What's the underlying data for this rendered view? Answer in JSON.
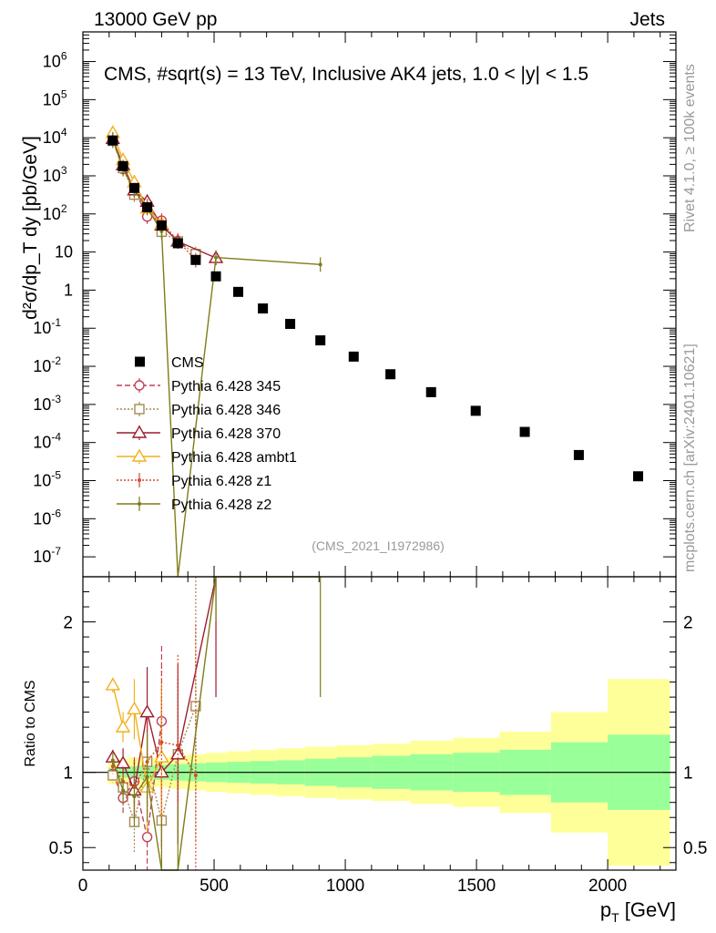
{
  "header": {
    "left": "13000 GeV pp",
    "right": "Jets",
    "plot_title": "CMS, #sqrt(s) = 13 TeV, Inclusive AK4 jets, 1.0 < |y| < 1.5",
    "analysis_id": "(CMS_2021_I1972986)",
    "side_top": "Rivet 4.1.0, ≥ 100k events",
    "side_bottom": "mcplots.cern.ch [arXiv:2401.10621]"
  },
  "colors": {
    "data": "#000000",
    "p345": "#c0405a",
    "p346": "#a68a50",
    "p370": "#9c1c30",
    "ambt1": "#f2b01e",
    "z1": "#d84a2c",
    "z2": "#7e7c18",
    "band_inner": "#99ff99",
    "band_outer": "#ffff99"
  },
  "chart_data": {
    "type": "scatter",
    "xlabel": "p_T [GeV]",
    "ylabel": "d²σ/dp_T dy [pb/GeV]",
    "ratio_ylabel": "Ratio to CMS",
    "xlim": [
      0,
      2260
    ],
    "ylim": [
      3e-08,
      6000000.0
    ],
    "ratio_ylim": [
      0.35,
      2.3
    ],
    "x_ticks": [
      {
        "value": 0,
        "label": "0"
      },
      {
        "value": 500,
        "label": "500"
      },
      {
        "value": 1000,
        "label": "1000"
      },
      {
        "value": 1500,
        "label": "1500"
      },
      {
        "value": 2000,
        "label": "2000"
      }
    ],
    "y_ticks": [
      {
        "exp": 6,
        "base": "10",
        "sup": "6"
      },
      {
        "exp": 5,
        "base": "10",
        "sup": "5"
      },
      {
        "exp": 4,
        "base": "10",
        "sup": "4"
      },
      {
        "exp": 3,
        "base": "10",
        "sup": "3"
      },
      {
        "exp": 2,
        "base": "10",
        "sup": "2"
      },
      {
        "exp": 1,
        "base": "10",
        "sup": ""
      },
      {
        "exp": 0,
        "base": "1",
        "sup": ""
      },
      {
        "exp": -1,
        "base": "10",
        "sup": "-1"
      },
      {
        "exp": -2,
        "base": "10",
        "sup": "-2"
      },
      {
        "exp": -3,
        "base": "10",
        "sup": "-3"
      },
      {
        "exp": -4,
        "base": "10",
        "sup": "-4"
      },
      {
        "exp": -5,
        "base": "10",
        "sup": "-5"
      },
      {
        "exp": -6,
        "base": "10",
        "sup": "-6"
      },
      {
        "exp": -7,
        "base": "10",
        "sup": "-7"
      }
    ],
    "ratio_ticks": [
      {
        "value": 0.5,
        "label": "0.5"
      },
      {
        "value": 1,
        "label": "1"
      },
      {
        "value": 2,
        "label": "2"
      }
    ],
    "data": {
      "name": "CMS",
      "x": [
        114,
        153,
        196,
        245,
        300,
        362,
        430,
        507,
        592,
        686,
        790,
        905,
        1032,
        1172,
        1327,
        1497,
        1684,
        1890,
        2116
      ],
      "y": [
        8500,
        1800,
        480,
        150,
        50,
        17,
        6.2,
        2.3,
        0.9,
        0.33,
        0.13,
        0.048,
        0.018,
        0.0062,
        0.0021,
        0.00068,
        0.00019,
        4.7e-05,
        1.3e-05
      ],
      "bins": [
        [
          97,
          133
        ],
        [
          133,
          174
        ],
        [
          174,
          220
        ],
        [
          220,
          272
        ],
        [
          272,
          330
        ],
        [
          330,
          395
        ],
        [
          395,
          468
        ],
        [
          468,
          548
        ],
        [
          548,
          638
        ],
        [
          638,
          737
        ],
        [
          737,
          846
        ],
        [
          846,
          967
        ],
        [
          967,
          1101
        ],
        [
          1101,
          1248
        ],
        [
          1248,
          1410
        ],
        [
          1410,
          1588
        ],
        [
          1588,
          1784
        ],
        [
          1784,
          2000
        ],
        [
          2000,
          2238
        ]
      ],
      "band_inner": [
        0.03,
        0.035,
        0.04,
        0.045,
        0.05,
        0.055,
        0.06,
        0.065,
        0.07,
        0.075,
        0.08,
        0.09,
        0.1,
        0.11,
        0.12,
        0.13,
        0.15,
        0.2,
        0.25
      ],
      "band_outer": [
        0.08,
        0.09,
        0.1,
        0.1,
        0.1,
        0.11,
        0.12,
        0.13,
        0.14,
        0.15,
        0.16,
        0.17,
        0.18,
        0.19,
        0.21,
        0.23,
        0.27,
        0.4,
        0.62
      ]
    },
    "series": [
      {
        "name": "Pythia 6.428 345",
        "color_key": "p345",
        "marker": "circle",
        "dash": "6,3",
        "x": [
          114,
          153,
          196,
          245,
          300
        ],
        "y": [
          8400,
          1500,
          450,
          85,
          67
        ],
        "ratio": [
          0.99,
          0.83,
          0.94,
          0.57,
          1.34
        ],
        "ratio_err": [
          0.05,
          0.1,
          0.15,
          0.35,
          0.5
        ]
      },
      {
        "name": "Pythia 6.428 346",
        "color_key": "p346",
        "marker": "square",
        "dash": "2,2",
        "x": [
          114,
          153,
          196,
          245,
          300,
          362,
          430
        ],
        "y": [
          8300,
          1600,
          320,
          160,
          34,
          19,
          8.9
        ],
        "ratio": [
          0.98,
          0.9,
          0.67,
          1.07,
          0.68,
          1.12,
          1.44
        ],
        "ratio_err": [
          0.05,
          0.1,
          0.2,
          0.3,
          0.5,
          0.5,
          0.9
        ]
      },
      {
        "name": "Pythia 6.428 370",
        "color_key": "p370",
        "marker": "triangle",
        "dash": "",
        "x": [
          114,
          153,
          196,
          245,
          300,
          362,
          507
        ],
        "y": [
          9300,
          1900,
          420,
          210,
          50,
          19,
          7.0
        ],
        "ratio": [
          1.1,
          1.06,
          0.88,
          1.4,
          1.0,
          1.12,
          3.0
        ],
        "ratio_err": [
          0.05,
          0.1,
          0.2,
          0.3,
          0.5,
          0.6,
          1.5
        ]
      },
      {
        "name": "Pythia 6.428 ambt1",
        "color_key": "ambt1",
        "marker": "triangle",
        "dash": "",
        "x": [
          114,
          153,
          196,
          245,
          300
        ],
        "y": [
          13500,
          2600,
          680,
          140,
          55
        ],
        "ratio": [
          1.58,
          1.3,
          1.42,
          0.9,
          1.1
        ],
        "ratio_err": [
          0.05,
          0.1,
          0.2,
          0.3,
          0.5
        ]
      },
      {
        "name": "Pythia 6.428 z1",
        "color_key": "z1",
        "marker": "dot",
        "dash": "2,2",
        "x": [
          114,
          153,
          196,
          245,
          300,
          362,
          430
        ],
        "y": [
          8800,
          1700,
          420,
          160,
          60,
          20,
          6.1
        ],
        "ratio": [
          1.04,
          0.94,
          0.9,
          1.07,
          1.2,
          1.18,
          0.98
        ],
        "ratio_err": [
          0.05,
          0.1,
          0.2,
          0.3,
          0.5,
          0.6,
          1.0
        ]
      },
      {
        "name": "Pythia 6.428 z2",
        "color_key": "z2",
        "marker": "dot",
        "dash": "",
        "x": [
          114,
          153,
          196,
          245,
          300,
          362,
          507,
          905
        ],
        "y": [
          9200,
          1600,
          400,
          145,
          35,
          1.2e-08,
          7.2,
          4.7
        ],
        "ratio": [
          1.08,
          0.88,
          0.84,
          0.97,
          0.3,
          0.3,
          3.0,
          3.0
        ],
        "ratio_err": [
          0.05,
          0.1,
          0.2,
          0.3,
          0.4,
          0.5,
          1.0,
          1.5
        ]
      }
    ]
  }
}
